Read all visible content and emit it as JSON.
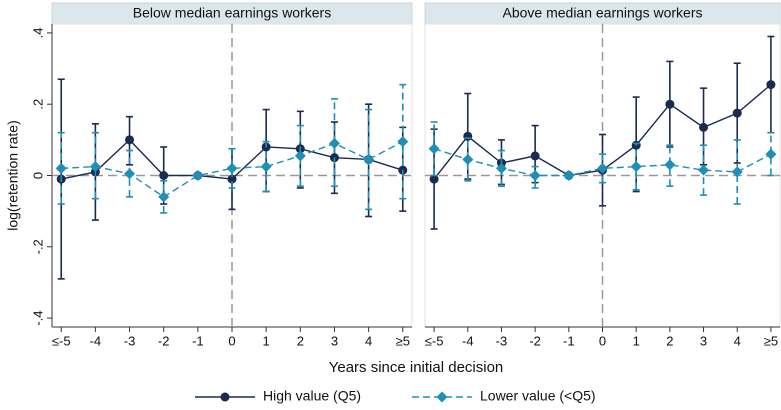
{
  "chart_data": [
    {
      "type": "line",
      "title": "Below median earnings workers",
      "y_label": "log(retention rate)",
      "x_label": "Years since initial decision",
      "x": [
        -5,
        -4,
        -3,
        -2,
        -1,
        0,
        1,
        2,
        3,
        4,
        5
      ],
      "xlim": [
        -5.27,
        5.27
      ],
      "xticks": [
        {
          "value": -5,
          "label": "≤-5"
        },
        -4,
        -3,
        -2,
        -1,
        0,
        1,
        2,
        3,
        4,
        {
          "value": 5,
          "label": "≥5"
        }
      ],
      "ylim": [
        -0.425,
        0.425
      ],
      "yticks": [
        {
          "value": -0.4,
          "label": "-.4"
        },
        {
          "value": -0.2,
          "label": "-.2"
        },
        0,
        {
          "value": 0.2,
          "label": ".2"
        },
        {
          "value": 0.4,
          "label": ".4"
        }
      ],
      "xline": 0,
      "yline": 0,
      "series": [
        {
          "name": "High value (Q5)",
          "color": "#1b2a4e",
          "marker": "circle",
          "dashed": false,
          "values": [
            -0.01,
            0.01,
            0.1,
            0,
            0,
            -0.01,
            0.08,
            0.075,
            0.05,
            0.045,
            0.015
          ],
          "lower": [
            -0.29,
            -0.125,
            0.03,
            -0.08,
            -0.005,
            -0.095,
            -0.045,
            -0.035,
            -0.05,
            -0.115,
            -0.1
          ],
          "upper": [
            0.27,
            0.145,
            0.165,
            0.08,
            0.005,
            0.075,
            0.185,
            0.18,
            0.15,
            0.2,
            0.135
          ]
        },
        {
          "name": "Lower value (<Q5)",
          "color": "#1f8fb5",
          "marker": "diamond",
          "dashed": true,
          "values": [
            0.02,
            0.025,
            0.005,
            -0.06,
            0,
            0.02,
            0.025,
            0.055,
            0.09,
            0.045,
            0.095
          ],
          "lower": [
            -0.08,
            -0.065,
            -0.06,
            -0.105,
            -0.005,
            -0.035,
            -0.045,
            -0.03,
            -0.03,
            -0.095,
            -0.065
          ],
          "upper": [
            0.12,
            0.12,
            0.07,
            -0.015,
            0.005,
            0.075,
            0.095,
            0.14,
            0.215,
            0.185,
            0.255
          ]
        }
      ]
    },
    {
      "type": "line",
      "title": "Above median earnings workers",
      "x": [
        -5,
        -4,
        -3,
        -2,
        -1,
        0,
        1,
        2,
        3,
        4,
        5
      ],
      "xlim": [
        -5.27,
        5.27
      ],
      "xticks": [
        {
          "value": -5,
          "label": "≤-5"
        },
        -4,
        -3,
        -2,
        -1,
        0,
        1,
        2,
        3,
        4,
        {
          "value": 5,
          "label": "≥5"
        }
      ],
      "ylim": [
        -0.425,
        0.425
      ],
      "xline": 0,
      "yline": 0,
      "series": [
        {
          "color": "#1b2a4e",
          "marker": "circle",
          "dashed": false,
          "values": [
            -0.01,
            0.11,
            0.035,
            0.055,
            0,
            0.015,
            0.085,
            0.2,
            0.135,
            0.175,
            0.255
          ],
          "lower": [
            -0.15,
            -0.01,
            -0.025,
            -0.02,
            -0.005,
            -0.085,
            -0.045,
            0.08,
            0.03,
            0.035,
            0.12
          ],
          "upper": [
            0.13,
            0.23,
            0.1,
            0.14,
            0.005,
            0.115,
            0.22,
            0.32,
            0.245,
            0.315,
            0.39
          ]
        },
        {
          "color": "#1f8fb5",
          "marker": "diamond",
          "dashed": true,
          "values": [
            0.075,
            0.045,
            0.02,
            0,
            0,
            0.02,
            0.025,
            0.03,
            0.015,
            0.01,
            0.06
          ],
          "lower": [
            0,
            -0.015,
            -0.03,
            -0.035,
            -0.005,
            -0.02,
            -0.04,
            -0.03,
            -0.055,
            -0.08,
            0
          ],
          "upper": [
            0.15,
            0.105,
            0.07,
            0.025,
            0.005,
            0.06,
            0.09,
            0.085,
            0.085,
            0.1,
            0.12
          ]
        }
      ]
    }
  ]
}
